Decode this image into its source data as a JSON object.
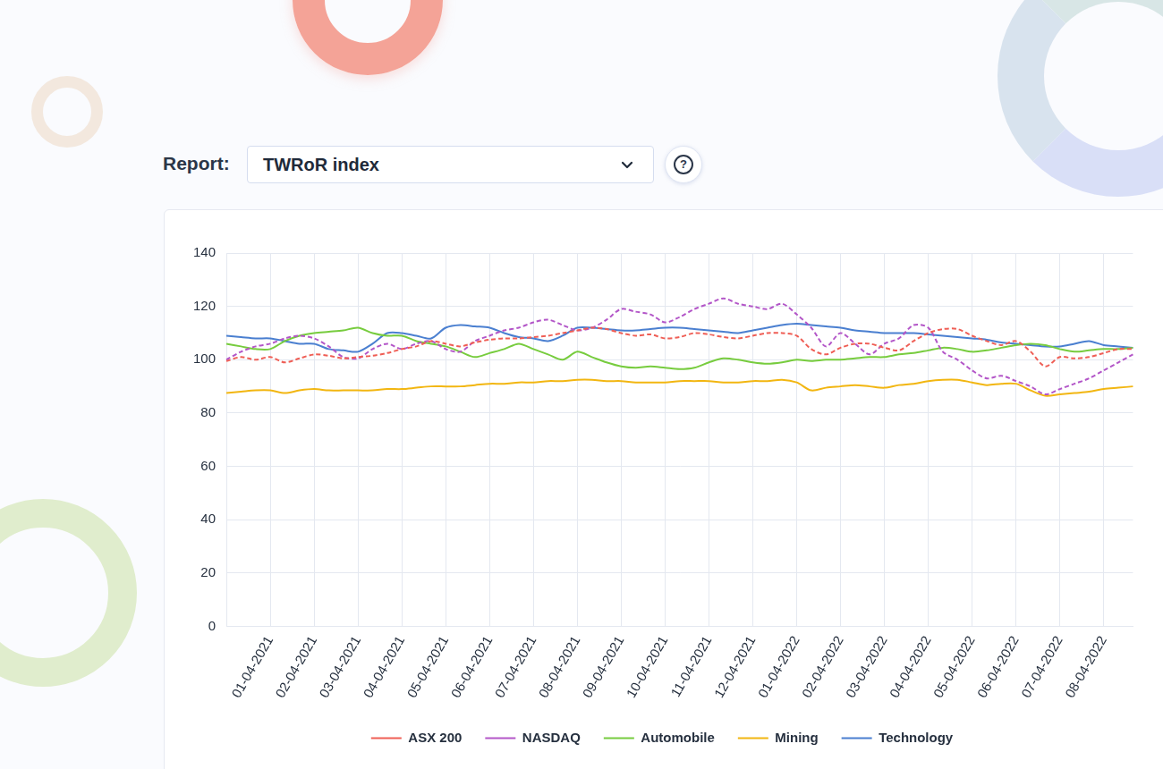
{
  "header": {
    "label": "Report:",
    "selected": "TWRoR index",
    "help": "?"
  },
  "chart_data": {
    "type": "line",
    "categories": [
      null,
      null,
      null,
      "01-04-2021",
      null,
      null,
      "02-04-2021",
      null,
      null,
      "03-04-2021",
      null,
      null,
      "04-04-2021",
      null,
      null,
      "05-04-2021",
      null,
      null,
      "06-04-2021",
      null,
      null,
      "07-04-2021",
      null,
      null,
      "08-04-2021",
      null,
      null,
      "09-04-2021",
      null,
      null,
      "10-04-2021",
      null,
      null,
      "11-04-2021",
      null,
      null,
      "12-04-2021",
      null,
      null,
      "01-04-2022",
      null,
      null,
      "02-04-2022",
      null,
      null,
      "03-04-2022",
      null,
      null,
      "04-04-2022",
      null,
      null,
      "05-04-2022",
      null,
      null,
      "06-04-2022",
      null,
      null,
      "07-04-2022",
      null,
      null,
      "08-04-2022",
      null,
      null
    ],
    "series": [
      {
        "name": "ASX 200",
        "color": "#ef5e55",
        "line_style": "dashed",
        "values": [
          99.5,
          101,
          100,
          101,
          99,
          100.5,
          102,
          101.5,
          100.5,
          101,
          101.5,
          102.5,
          104,
          105,
          107,
          106,
          105,
          106.5,
          107.5,
          108,
          108,
          108.5,
          109,
          110,
          111,
          112,
          111.5,
          110,
          109,
          109.5,
          108,
          108.5,
          110,
          109.5,
          108.5,
          108,
          109,
          110,
          110,
          109,
          104,
          102,
          104.5,
          106,
          106,
          104.5,
          103.5,
          107,
          110,
          111.5,
          111.5,
          109,
          107,
          105.5,
          107,
          103,
          97.5,
          101,
          100.5,
          101,
          102.5,
          104,
          104
        ]
      },
      {
        "name": "NASDAQ",
        "color": "#b356c8",
        "line_style": "dashed",
        "values": [
          100,
          103,
          105,
          106,
          108,
          109,
          108,
          105,
          101,
          100.5,
          104,
          106,
          104,
          106,
          107,
          104,
          103,
          107,
          109,
          111,
          112,
          114,
          115,
          113,
          111,
          112,
          115,
          119,
          118,
          117,
          114,
          116,
          119,
          121,
          123,
          121,
          120,
          119,
          121,
          117,
          112,
          105,
          110,
          106,
          102,
          106,
          108,
          113,
          112,
          103,
          100,
          96,
          93,
          94,
          92,
          90,
          87,
          89,
          91,
          93,
          96,
          99,
          102
        ]
      },
      {
        "name": "Automobile",
        "color": "#77cc3e",
        "line_style": "solid",
        "values": [
          106,
          105,
          104,
          104,
          107,
          109,
          110,
          110.5,
          111,
          112,
          110,
          109,
          109,
          107,
          106,
          105,
          103,
          101,
          102.5,
          104,
          106,
          104,
          102,
          100,
          103,
          101,
          99,
          97.5,
          97,
          97.5,
          97,
          96.5,
          97,
          99,
          100.5,
          100,
          99,
          98.5,
          99,
          100,
          99.5,
          100,
          100,
          100.5,
          101,
          101,
          102,
          102.5,
          103.5,
          104.5,
          104,
          103,
          103.5,
          104.5,
          105.5,
          106,
          105.5,
          104,
          103,
          103.5,
          104,
          104,
          104.5
        ]
      },
      {
        "name": "Mining",
        "color": "#f2b611",
        "line_style": "solid",
        "values": [
          87.5,
          88,
          88.5,
          88.5,
          87.5,
          88.5,
          89,
          88.5,
          88.5,
          88.5,
          88.5,
          89,
          89,
          89.5,
          90,
          90,
          90,
          90.5,
          91,
          91,
          91.5,
          91.5,
          92,
          92,
          92.5,
          92.5,
          92,
          92,
          91.5,
          91.5,
          91.5,
          92,
          92,
          92,
          91.5,
          91.5,
          92,
          92,
          92.5,
          91.5,
          88.5,
          89.5,
          90,
          90.5,
          90,
          89.5,
          90.5,
          91,
          92,
          92.5,
          92.5,
          91.5,
          90.5,
          91,
          91,
          88.5,
          86.5,
          87,
          87.5,
          88,
          89,
          89.5,
          90
        ]
      },
      {
        "name": "Technology",
        "color": "#4a7fd0",
        "line_style": "solid",
        "values": [
          109,
          108.5,
          108,
          108,
          107,
          106,
          106,
          104,
          103.5,
          103,
          106,
          110,
          110,
          109,
          108,
          112,
          113,
          112.5,
          112,
          110,
          108.5,
          108,
          107,
          109,
          112,
          112,
          111.5,
          111,
          111,
          111.5,
          112,
          112,
          111.5,
          111,
          110.5,
          110,
          111,
          112,
          113,
          113.5,
          113,
          112.5,
          112,
          111,
          110.5,
          110,
          110,
          110,
          109.5,
          109,
          108.5,
          108,
          107.5,
          106.5,
          106,
          105.5,
          105,
          105,
          106,
          107,
          105.5,
          105,
          104.5
        ]
      }
    ],
    "ylim": [
      0,
      140
    ],
    "yticks": [
      0,
      20,
      40,
      60,
      80,
      100,
      120,
      140
    ],
    "grid": true,
    "legend": "bottom"
  }
}
